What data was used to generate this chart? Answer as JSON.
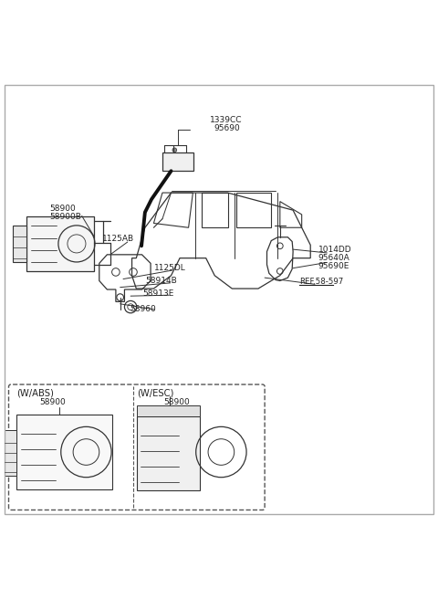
{
  "bg_color": "#ffffff",
  "line_color": "#333333",
  "text_color": "#222222",
  "labels": {
    "top1": "1339CC",
    "top2": "95690",
    "left1": "58900",
    "left2": "58900B",
    "c1": "1125AB",
    "c2": "1125DL",
    "c3": "58914B",
    "c4": "58913E",
    "c5": "58960",
    "r1": "1014DD",
    "r2": "95640A",
    "r3": "95690E",
    "ref": "REF.58-597",
    "abs_label": "(W/ABS)",
    "esc_label": "(W/ESC)",
    "abs_part": "58900",
    "esc_part": "58900"
  }
}
